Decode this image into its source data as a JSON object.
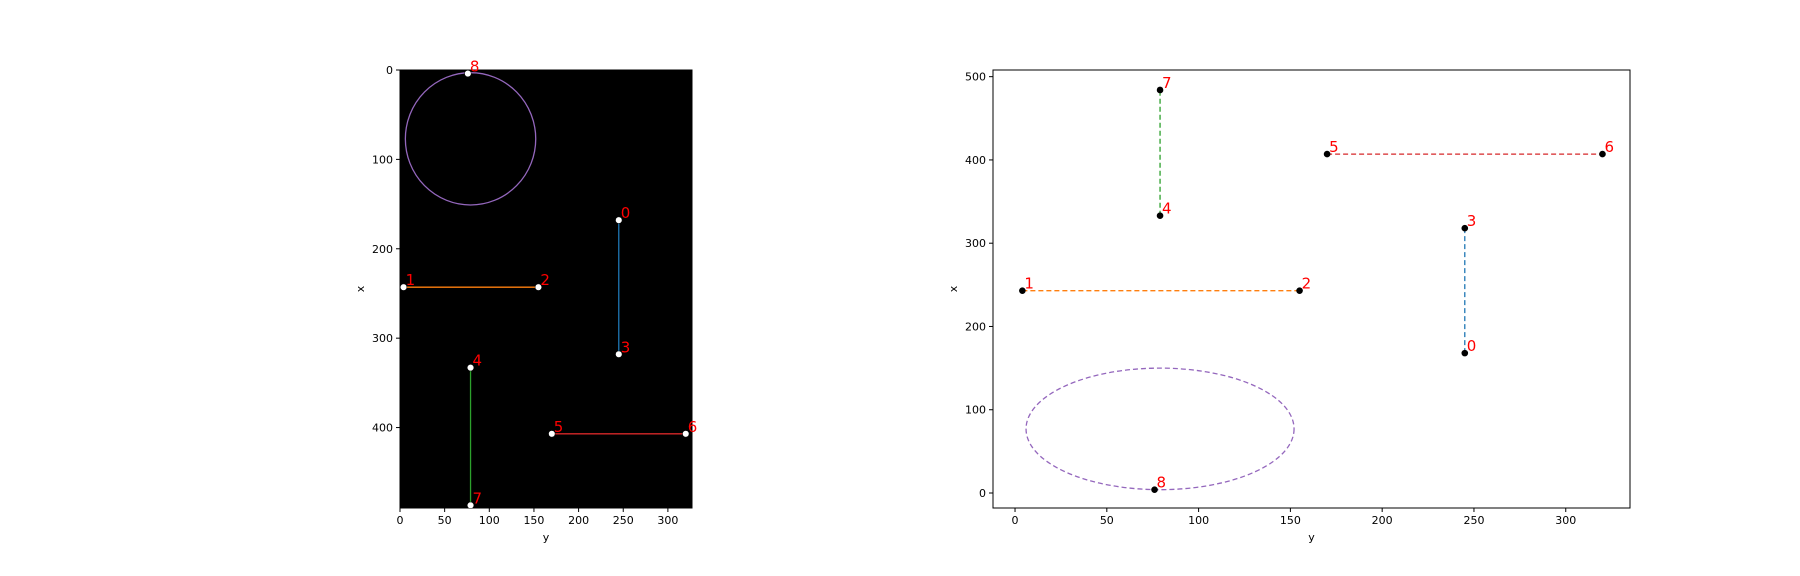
{
  "chart_data": [
    {
      "type": "image",
      "background": "#000000",
      "xlabel": "y",
      "ylabel": "x",
      "xlim": [
        0,
        327
      ],
      "ylim": [
        0,
        490
      ],
      "y_inverted": true,
      "xticks": [
        0,
        50,
        100,
        150,
        200,
        250,
        300
      ],
      "yticks": [
        0,
        100,
        200,
        300,
        400
      ],
      "point_color": "#ffffff",
      "label_color": "#ff0000",
      "segments": [
        {
          "color": "#1f77b4",
          "style": "solid",
          "points": [
            [
              245,
              168
            ],
            [
              245,
              318
            ]
          ]
        },
        {
          "color": "#ff7f0e",
          "style": "solid",
          "points": [
            [
              4,
              243
            ],
            [
              155,
              243
            ]
          ]
        },
        {
          "color": "#2ca02c",
          "style": "solid",
          "points": [
            [
              79,
              333
            ],
            [
              79,
              487
            ]
          ]
        },
        {
          "color": "#d62728",
          "style": "solid",
          "points": [
            [
              170,
              407
            ],
            [
              320,
              407
            ]
          ]
        }
      ],
      "ellipse": {
        "color": "#9467bd",
        "style": "solid",
        "cx": 79,
        "cy": 77,
        "rx": 73,
        "ry": 74
      },
      "points": [
        {
          "label": "0",
          "x": 245,
          "y": 168
        },
        {
          "label": "1",
          "x": 4,
          "y": 243
        },
        {
          "label": "2",
          "x": 155,
          "y": 243
        },
        {
          "label": "3",
          "x": 245,
          "y": 318
        },
        {
          "label": "4",
          "x": 79,
          "y": 333
        },
        {
          "label": "5",
          "x": 170,
          "y": 407
        },
        {
          "label": "6",
          "x": 320,
          "y": 407
        },
        {
          "label": "7",
          "x": 79,
          "y": 487
        },
        {
          "label": "8",
          "x": 76,
          "y": 4
        }
      ]
    },
    {
      "type": "scatter",
      "background": "#ffffff",
      "xlabel": "y",
      "ylabel": "x",
      "xlim": [
        -12,
        335
      ],
      "ylim": [
        -18,
        508
      ],
      "xticks": [
        0,
        50,
        100,
        150,
        200,
        250,
        300
      ],
      "yticks": [
        0,
        100,
        200,
        300,
        400,
        500
      ],
      "point_color": "#000000",
      "label_color": "#ff0000",
      "segments": [
        {
          "color": "#1f77b4",
          "style": "dashed",
          "points": [
            [
              245,
              168
            ],
            [
              245,
              318
            ]
          ]
        },
        {
          "color": "#ff7f0e",
          "style": "dashed",
          "points": [
            [
              4,
              243
            ],
            [
              155,
              243
            ]
          ]
        },
        {
          "color": "#2ca02c",
          "style": "dashed",
          "points": [
            [
              79,
              333
            ],
            [
              79,
              484
            ]
          ]
        },
        {
          "color": "#d62728",
          "style": "dashed",
          "points": [
            [
              170,
              407
            ],
            [
              320,
              407
            ]
          ]
        }
      ],
      "ellipse": {
        "color": "#9467bd",
        "style": "dashed",
        "cx": 79,
        "cy": 77,
        "rx": 73,
        "ry": 73
      },
      "points": [
        {
          "label": "0",
          "x": 245,
          "y": 168
        },
        {
          "label": "1",
          "x": 4,
          "y": 243
        },
        {
          "label": "2",
          "x": 155,
          "y": 243
        },
        {
          "label": "3",
          "x": 245,
          "y": 318
        },
        {
          "label": "4",
          "x": 79,
          "y": 333
        },
        {
          "label": "5",
          "x": 170,
          "y": 407
        },
        {
          "label": "6",
          "x": 320,
          "y": 407
        },
        {
          "label": "7",
          "x": 79,
          "y": 484
        },
        {
          "label": "8",
          "x": 76,
          "y": 4
        }
      ]
    }
  ]
}
